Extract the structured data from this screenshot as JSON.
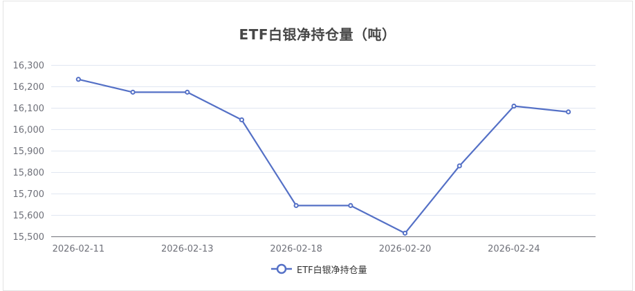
{
  "title": "ETF白银净持仓量（吨）",
  "colors": {
    "series": "#5470c6",
    "grid": "#e0e6f1",
    "axis": "#6e7079",
    "title": "#464646",
    "border": "#e3e3e3"
  },
  "legend": {
    "items": [
      {
        "label": "ETF白银净持仓量",
        "icon": "line-circle-icon"
      }
    ]
  },
  "chart_data": {
    "type": "line",
    "title": "ETF白银净持仓量（吨）",
    "xlabel": "",
    "ylabel": "",
    "categories": [
      "2026-02-11",
      "",
      "2026-02-13",
      "",
      "2026-02-18",
      "",
      "2026-02-20",
      "",
      "2026-02-24",
      ""
    ],
    "visible_x_tick_labels": [
      "2026-02-11",
      "2026-02-13",
      "2026-02-18",
      "2026-02-20",
      "2026-02-24"
    ],
    "y_tick_labels": [
      "15,500",
      "15,600",
      "15,700",
      "15,800",
      "15,900",
      "16,000",
      "16,100",
      "16,200",
      "16,300"
    ],
    "ylim": [
      15500,
      16300
    ],
    "y_step": 100,
    "grid": true,
    "legend_position": "bottom",
    "series": [
      {
        "name": "ETF白银净持仓量",
        "values": [
          16233,
          16173,
          16173,
          16044,
          15644,
          15644,
          15515,
          15829,
          16108,
          16081
        ]
      }
    ]
  }
}
